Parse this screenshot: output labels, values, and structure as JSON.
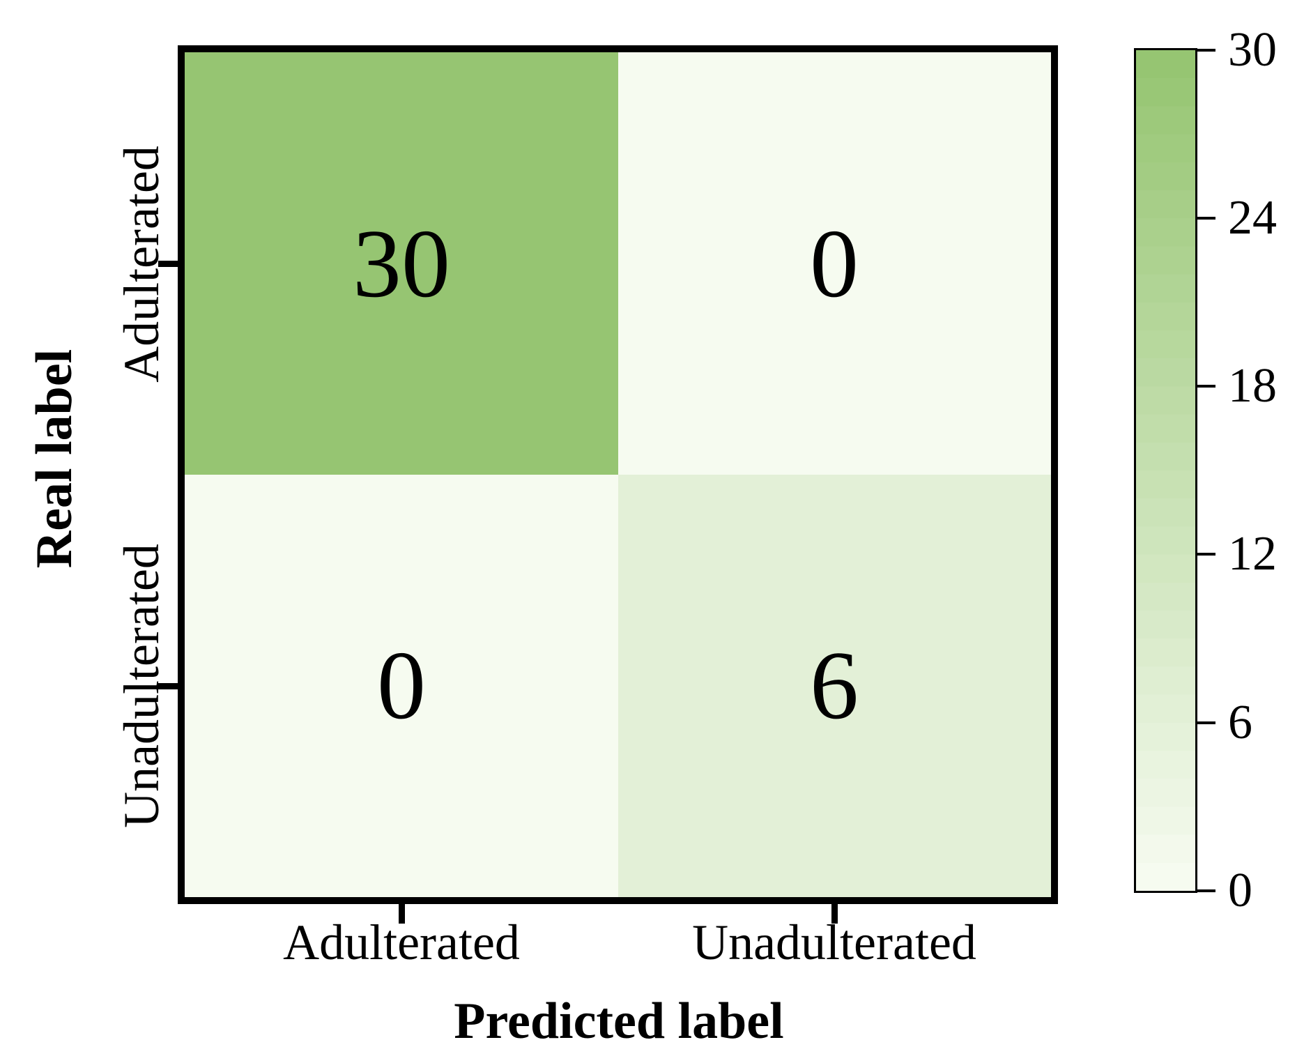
{
  "chart_data": {
    "type": "heatmap",
    "title": "",
    "xlabel": "Predicted label",
    "ylabel": "Real label",
    "x_categories": [
      "Adulterated",
      "Unadulterated"
    ],
    "y_categories": [
      "Adulterated",
      "Unadulterated"
    ],
    "values": [
      [
        30,
        0
      ],
      [
        0,
        6
      ]
    ],
    "vmin": 0,
    "vmax": 30,
    "colorbar_ticks": [
      "30",
      "24",
      "18",
      "12",
      "6",
      "0"
    ],
    "colorbar_tick_values": [
      30,
      24,
      18,
      12,
      6,
      0
    ],
    "colormap_low": "#f6fbf0",
    "colormap_high": "#96c572",
    "colorbar_position": "right",
    "grid": false,
    "frame_color": "#000000"
  }
}
